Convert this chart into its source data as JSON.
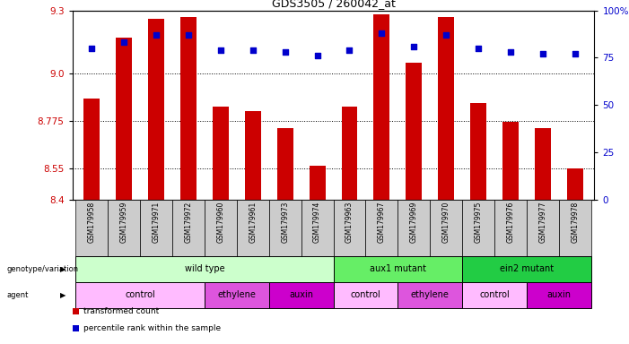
{
  "title": "GDS3505 / 260042_at",
  "samples": [
    "GSM179958",
    "GSM179959",
    "GSM179971",
    "GSM179972",
    "GSM179960",
    "GSM179961",
    "GSM179973",
    "GSM179974",
    "GSM179963",
    "GSM179967",
    "GSM179969",
    "GSM179970",
    "GSM179975",
    "GSM179976",
    "GSM179977",
    "GSM179978"
  ],
  "bar_values": [
    8.88,
    9.17,
    9.26,
    9.27,
    8.84,
    8.82,
    8.74,
    8.56,
    8.84,
    9.28,
    9.05,
    9.27,
    8.86,
    8.77,
    8.74,
    8.55
  ],
  "dot_values": [
    80,
    83,
    87,
    87,
    79,
    79,
    78,
    76,
    79,
    88,
    81,
    87,
    80,
    78,
    77,
    77
  ],
  "ylim_left": [
    8.4,
    9.3
  ],
  "ylim_right": [
    0,
    100
  ],
  "yticks_left": [
    8.4,
    8.55,
    8.775,
    9.0,
    9.3
  ],
  "yticks_right": [
    0,
    25,
    50,
    75,
    100
  ],
  "bar_color": "#cc0000",
  "dot_color": "#0000cc",
  "bar_base": 8.4,
  "genotype_groups": [
    {
      "label": "wild type",
      "start": 0,
      "end": 8,
      "color": "#ccffcc"
    },
    {
      "label": "aux1 mutant",
      "start": 8,
      "end": 12,
      "color": "#66ee66"
    },
    {
      "label": "ein2 mutant",
      "start": 12,
      "end": 16,
      "color": "#22cc44"
    }
  ],
  "agent_groups": [
    {
      "label": "control",
      "start": 0,
      "end": 4,
      "color": "#ffbbff"
    },
    {
      "label": "ethylene",
      "start": 4,
      "end": 6,
      "color": "#dd55dd"
    },
    {
      "label": "auxin",
      "start": 6,
      "end": 8,
      "color": "#cc00cc"
    },
    {
      "label": "control",
      "start": 8,
      "end": 10,
      "color": "#ffbbff"
    },
    {
      "label": "ethylene",
      "start": 10,
      "end": 12,
      "color": "#dd55dd"
    },
    {
      "label": "control",
      "start": 12,
      "end": 14,
      "color": "#ffbbff"
    },
    {
      "label": "auxin",
      "start": 14,
      "end": 16,
      "color": "#cc00cc"
    }
  ],
  "legend_items": [
    {
      "label": "transformed count",
      "color": "#cc0000"
    },
    {
      "label": "percentile rank within the sample",
      "color": "#0000cc"
    }
  ],
  "tick_label_color_left": "#cc0000",
  "tick_label_color_right": "#0000cc",
  "background_color": "#ffffff",
  "sample_box_color": "#cccccc"
}
